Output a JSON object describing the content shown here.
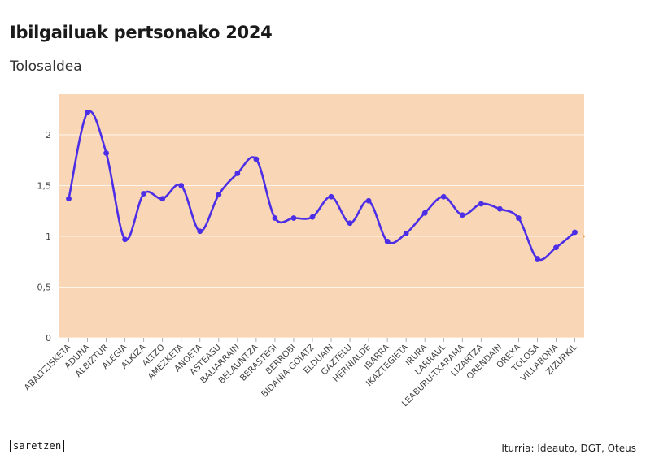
{
  "header": {
    "title": "Ibilgailuak pertsonako 2024",
    "subtitle": "Tolosaldea"
  },
  "footer": {
    "logo": "saretzen",
    "source": "Iturria: Ideauto, DGT, Oteus"
  },
  "colors": {
    "plot_background": "#f9d6b6",
    "line": "#4b2ee6",
    "grid": "#ffffff",
    "accent_dot": "#e8a24a"
  },
  "chart_data": {
    "type": "line",
    "title": "Ibilgailuak pertsonako 2024",
    "subtitle": "Tolosaldea",
    "xlabel": "",
    "ylabel": "",
    "ylim": [
      0,
      2.4
    ],
    "yticks": [
      0,
      0.5,
      1,
      1.5,
      2
    ],
    "ytick_labels": [
      "0",
      "0,5",
      "1",
      "1,5",
      "2"
    ],
    "grid": true,
    "categories": [
      "ABALTZISKETA",
      "ADUNA",
      "ALBIZTUR",
      "ALEGIA",
      "ALKIZA",
      "ALTZO",
      "AMEZKETA",
      "ANOETA",
      "ASTEASU",
      "BALIARRAIN",
      "BELAUNTZA",
      "BERASTEGI",
      "BERROBI",
      "BIDANIA-GOIATZ",
      "ELDUAIN",
      "GAZTELU",
      "HERNIALDE",
      "IBARRA",
      "IKAZTEGIETA",
      "IRURA",
      "LARRAUL",
      "LEABURU-TXARAMA",
      "LIZARTZA",
      "ORENDAIN",
      "OREXA",
      "TOLOSA",
      "VILLABONA",
      "ZIZURKIL"
    ],
    "values": [
      1.37,
      2.22,
      1.82,
      0.97,
      1.42,
      1.37,
      1.5,
      1.05,
      1.41,
      1.62,
      1.76,
      1.18,
      1.18,
      1.19,
      1.39,
      1.13,
      1.35,
      0.95,
      1.03,
      1.23,
      1.39,
      1.21,
      1.32,
      1.27,
      1.18,
      0.78,
      0.89,
      1.04
    ]
  }
}
